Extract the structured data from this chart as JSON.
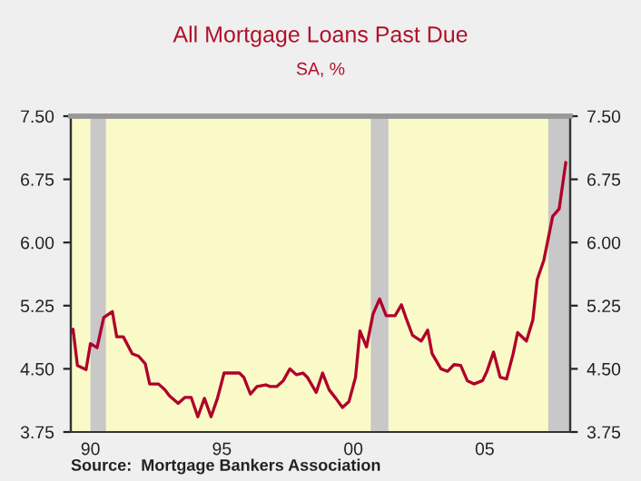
{
  "chart_data": {
    "type": "line",
    "title": "All Mortgage Loans Past Due",
    "subtitle": "SA, %",
    "annotations": [
      "Source:  Mortgage Bankers Association"
    ],
    "x": [
      "1989-10",
      "1989-11",
      "1990-01",
      "1990-05",
      "1990-07",
      "1990-10",
      "1991-01",
      "1991-05",
      "1991-07",
      "1991-10",
      "1992-02",
      "1992-05",
      "1992-08",
      "1992-10",
      "1993-02",
      "1993-05",
      "1993-07",
      "1993-11",
      "1994-02",
      "1994-05",
      "1994-08",
      "1994-11",
      "1995-02",
      "1995-05",
      "1995-08",
      "1995-11",
      "1996-03",
      "1996-05",
      "1996-08",
      "1996-11",
      "1997-03",
      "1997-05",
      "1997-08",
      "1997-11",
      "1998-02",
      "1998-05",
      "1998-08",
      "1998-10",
      "1999-02",
      "1999-05",
      "1999-08",
      "1999-11",
      "2000-02",
      "2000-05",
      "2000-08",
      "2000-10",
      "2001-01",
      "2001-04",
      "2001-07",
      "2001-10",
      "2002-02",
      "2002-05",
      "2002-07",
      "2002-10",
      "2003-02",
      "2003-05",
      "2003-07",
      "2003-11",
      "2004-02",
      "2004-05",
      "2004-08",
      "2004-11",
      "2005-02",
      "2005-06",
      "2005-08",
      "2005-11",
      "2006-02",
      "2006-05",
      "2006-08",
      "2006-10",
      "2007-02",
      "2007-05",
      "2007-07",
      "2007-10",
      "2008-02",
      "2008-05",
      "2008-08"
    ],
    "series": [
      {
        "color": "#b0002a",
        "values": [
          4.93,
          4.97,
          4.54,
          4.49,
          4.8,
          4.75,
          5.11,
          5.18,
          4.88,
          4.88,
          4.68,
          4.65,
          4.56,
          4.32,
          4.32,
          4.25,
          4.18,
          4.09,
          4.16,
          4.16,
          3.93,
          4.15,
          3.93,
          4.15,
          4.45,
          4.45,
          4.45,
          4.4,
          4.2,
          4.29,
          4.31,
          4.29,
          4.29,
          4.36,
          4.5,
          4.43,
          4.45,
          4.4,
          4.22,
          4.45,
          4.25,
          4.15,
          4.04,
          4.11,
          4.4,
          4.95,
          4.76,
          5.15,
          5.33,
          5.13,
          5.13,
          5.26,
          5.11,
          4.9,
          4.83,
          4.96,
          4.68,
          4.5,
          4.47,
          4.55,
          4.54,
          4.36,
          4.32,
          4.36,
          4.47,
          4.7,
          4.4,
          4.38,
          4.68,
          4.93,
          4.83,
          5.08,
          5.56,
          5.79,
          6.31,
          6.4,
          6.95
        ]
      }
    ],
    "xlim": [
      "1989-10",
      "2008-10"
    ],
    "xticks": [
      {
        "value": "1990-07",
        "label": "90"
      },
      {
        "value": "1995-07",
        "label": "95"
      },
      {
        "value": "2000-07",
        "label": "00"
      },
      {
        "value": "2005-07",
        "label": "05"
      }
    ],
    "ylim": [
      3.75,
      7.5
    ],
    "yticks": [
      {
        "value": 3.75,
        "label": "3.75"
      },
      {
        "value": 4.5,
        "label": "4.50"
      },
      {
        "value": 5.25,
        "label": "5.25"
      },
      {
        "value": 6.0,
        "label": "6.00"
      },
      {
        "value": 6.75,
        "label": "6.75"
      },
      {
        "value": 7.5,
        "label": "7.50"
      }
    ],
    "y2lim": [
      3.75,
      7.5
    ],
    "y2ticks": [
      {
        "value": 3.75,
        "label": "3.75"
      },
      {
        "value": 4.5,
        "label": "4.50"
      },
      {
        "value": 5.25,
        "label": "5.25"
      },
      {
        "value": 6.0,
        "label": "6.00"
      },
      {
        "value": 6.75,
        "label": "6.75"
      },
      {
        "value": 7.5,
        "label": "7.50"
      }
    ],
    "bands": [
      {
        "axis": "x",
        "from": "1990-07",
        "to": "1991-02",
        "color": "#c8c8c8"
      },
      {
        "axis": "x",
        "from": "2001-03",
        "to": "2001-11",
        "color": "#c8c8c8"
      },
      {
        "axis": "x",
        "from": "2007-12",
        "to": "2008-10",
        "color": "#c8c8c8"
      }
    ],
    "grid": false,
    "legend": false,
    "marker": "none",
    "line_style": "solid"
  }
}
